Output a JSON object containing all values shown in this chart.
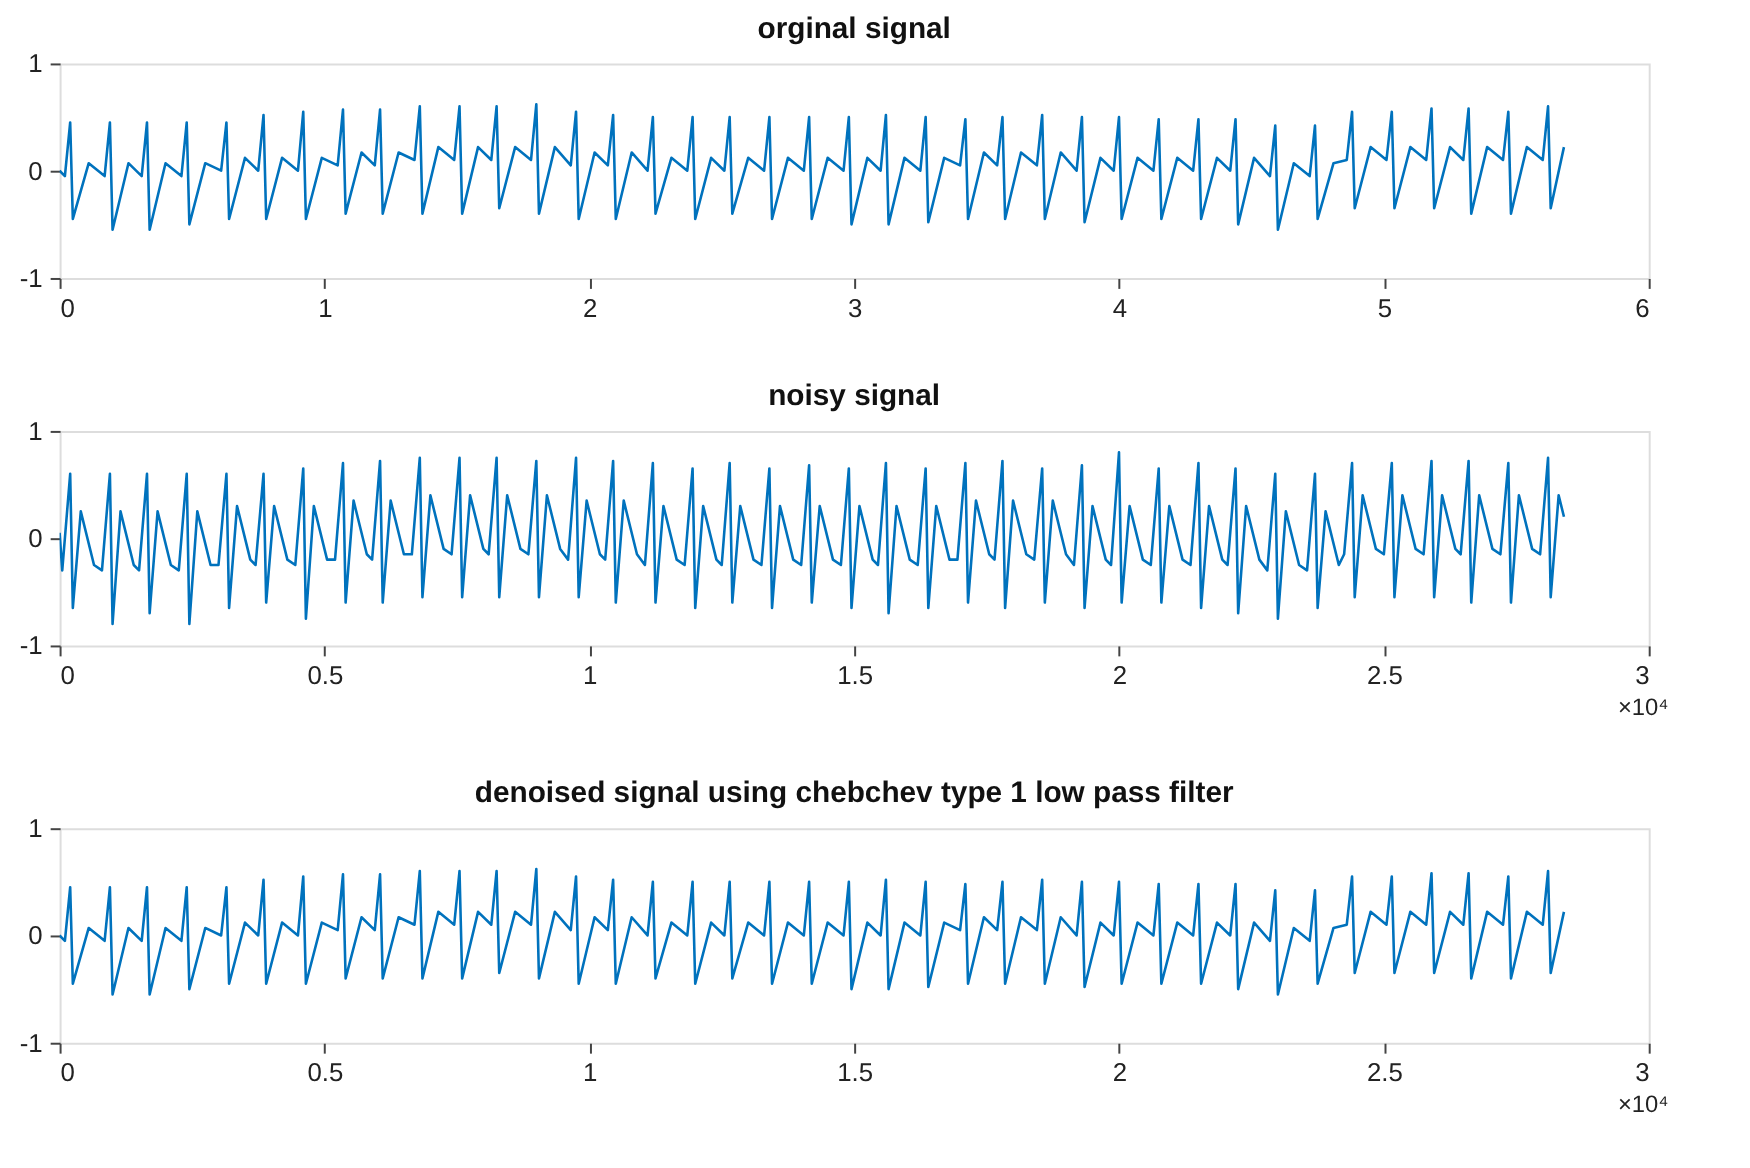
{
  "chart_data": [
    {
      "type": "line",
      "title": "orginal signal",
      "xlim": [
        0,
        6
      ],
      "xticks": [
        0,
        1,
        2,
        3,
        4,
        5,
        6
      ],
      "ylim": [
        -1,
        1
      ],
      "yticks": [
        -1,
        0,
        1
      ],
      "marker": "none",
      "line_style": "solid",
      "x": [
        0,
        0.02,
        0.04,
        0.05,
        0.11,
        0.17,
        0.19,
        0.2,
        0.26,
        0.31,
        0.33,
        0.34,
        0.4,
        0.46,
        0.48,
        0.49,
        0.55,
        0.61,
        0.63,
        0.64,
        0.7,
        0.75,
        0.77,
        0.78,
        0.84,
        0.9,
        0.92,
        0.93,
        0.99,
        1.05,
        1.07,
        1.08,
        1.14,
        1.19,
        1.21,
        1.22,
        1.28,
        1.34,
        1.36,
        1.37,
        1.43,
        1.49,
        1.51,
        1.52,
        1.58,
        1.63,
        1.65,
        1.66,
        1.72,
        1.78,
        1.8,
        1.81,
        1.87,
        1.93,
        1.95,
        1.96,
        2.02,
        2.07,
        2.09,
        2.1,
        2.16,
        2.22,
        2.24,
        2.25,
        2.31,
        2.37,
        2.39,
        2.4,
        2.46,
        2.51,
        2.53,
        2.54,
        2.6,
        2.66,
        2.68,
        2.69,
        2.75,
        2.81,
        2.83,
        2.84,
        2.9,
        2.96,
        2.98,
        2.99,
        3.05,
        3.1,
        3.12,
        3.13,
        3.19,
        3.25,
        3.27,
        3.28,
        3.34,
        3.4,
        3.42,
        3.43,
        3.49,
        3.54,
        3.56,
        3.57,
        3.63,
        3.69,
        3.71,
        3.72,
        3.78,
        3.84,
        3.86,
        3.87,
        3.93,
        3.98,
        4.0,
        4.01,
        4.07,
        4.13,
        4.15,
        4.16,
        4.22,
        4.28,
        4.3,
        4.31,
        4.37,
        4.42,
        4.44,
        4.45,
        4.51,
        4.57,
        4.59,
        4.6,
        4.66,
        4.72,
        4.74,
        4.75,
        4.81,
        4.86,
        4.88,
        4.89,
        4.95,
        5.01,
        5.03,
        5.04,
        5.1,
        5.16,
        5.18,
        5.19,
        5.25,
        5.3,
        5.32,
        5.33,
        5.39,
        5.45,
        5.47,
        5.48,
        5.54,
        5.6,
        5.62,
        5.63,
        5.68
      ],
      "series": [
        {
          "color": "#0072bd",
          "values": [
            0,
            -0.05,
            0.45,
            -0.45,
            0.07,
            -0.05,
            0.45,
            -0.55,
            0.07,
            -0.05,
            0.45,
            -0.55,
            0.07,
            -0.05,
            0.45,
            -0.5,
            0.07,
            0,
            0.45,
            -0.45,
            0.12,
            0,
            0.52,
            -0.45,
            0.12,
            0,
            0.55,
            -0.45,
            0.12,
            0.05,
            0.57,
            -0.4,
            0.17,
            0.05,
            0.57,
            -0.4,
            0.17,
            0.1,
            0.6,
            -0.4,
            0.22,
            0.1,
            0.6,
            -0.4,
            0.22,
            0.1,
            0.6,
            -0.35,
            0.22,
            0.1,
            0.62,
            -0.4,
            0.22,
            0.05,
            0.55,
            -0.45,
            0.17,
            0.05,
            0.52,
            -0.45,
            0.17,
            0,
            0.5,
            -0.4,
            0.12,
            0,
            0.5,
            -0.45,
            0.12,
            0,
            0.5,
            -0.4,
            0.12,
            0,
            0.5,
            -0.45,
            0.12,
            0,
            0.5,
            -0.45,
            0.12,
            0,
            0.5,
            -0.5,
            0.12,
            0,
            0.52,
            -0.5,
            0.12,
            0,
            0.5,
            -0.48,
            0.12,
            0.05,
            0.48,
            -0.45,
            0.17,
            0.05,
            0.5,
            -0.45,
            0.17,
            0.05,
            0.52,
            -0.45,
            0.17,
            0,
            0.5,
            -0.48,
            0.12,
            0,
            0.5,
            -0.45,
            0.12,
            0,
            0.48,
            -0.45,
            0.12,
            0,
            0.48,
            -0.45,
            0.12,
            0,
            0.48,
            -0.5,
            0.12,
            -0.05,
            0.42,
            -0.55,
            0.07,
            -0.05,
            0.42,
            -0.45,
            0.07,
            0.1,
            0.55,
            -0.35,
            0.22,
            0.1,
            0.55,
            -0.35,
            0.22,
            0.1,
            0.58,
            -0.35,
            0.22,
            0.1,
            0.58,
            -0.4,
            0.22,
            0.1,
            0.55,
            -0.4,
            0.22,
            0.1,
            0.6,
            -0.35,
            0.22
          ]
        }
      ]
    },
    {
      "type": "line",
      "title": "noisy signal",
      "xlim": [
        0,
        3
      ],
      "xticks": [
        0,
        0.5,
        1,
        1.5,
        2,
        2.5,
        3
      ],
      "ylim": [
        -1,
        1
      ],
      "yticks": [
        -1,
        0,
        1
      ],
      "marker": "none",
      "line_style": "solid",
      "annotations": [
        "×10⁴"
      ],
      "x": [
        0,
        0.005,
        0.02,
        0.025,
        0.04,
        0.065,
        0.08,
        0.095,
        0.1,
        0.115,
        0.14,
        0.15,
        0.165,
        0.17,
        0.185,
        0.21,
        0.225,
        0.24,
        0.245,
        0.26,
        0.285,
        0.3,
        0.315,
        0.32,
        0.335,
        0.36,
        0.37,
        0.385,
        0.39,
        0.405,
        0.43,
        0.445,
        0.46,
        0.465,
        0.48,
        0.505,
        0.52,
        0.535,
        0.54,
        0.555,
        0.58,
        0.59,
        0.605,
        0.61,
        0.625,
        0.65,
        0.665,
        0.68,
        0.685,
        0.7,
        0.725,
        0.74,
        0.755,
        0.76,
        0.775,
        0.8,
        0.81,
        0.825,
        0.83,
        0.845,
        0.87,
        0.885,
        0.9,
        0.905,
        0.92,
        0.945,
        0.96,
        0.975,
        0.98,
        0.995,
        1.02,
        1.03,
        1.045,
        1.05,
        1.065,
        1.09,
        1.105,
        1.12,
        1.125,
        1.14,
        1.165,
        1.18,
        1.195,
        1.2,
        1.215,
        1.24,
        1.25,
        1.265,
        1.27,
        1.285,
        1.31,
        1.325,
        1.34,
        1.345,
        1.36,
        1.385,
        1.4,
        1.415,
        1.42,
        1.435,
        1.46,
        1.475,
        1.49,
        1.495,
        1.51,
        1.535,
        1.545,
        1.56,
        1.565,
        1.58,
        1.605,
        1.62,
        1.635,
        1.64,
        1.655,
        1.68,
        1.695,
        1.71,
        1.715,
        1.73,
        1.755,
        1.765,
        1.78,
        1.785,
        1.8,
        1.825,
        1.84,
        1.855,
        1.86,
        1.875,
        1.9,
        1.915,
        1.93,
        1.935,
        1.95,
        1.975,
        1.985,
        2.0,
        2.005,
        2.02,
        2.045,
        2.06,
        2.075,
        2.08,
        2.095,
        2.12,
        2.135,
        2.15,
        2.155,
        2.17,
        2.195,
        2.205,
        2.22,
        2.225,
        2.24,
        2.265,
        2.28,
        2.295,
        2.3,
        2.315,
        2.34,
        2.355,
        2.37,
        2.375,
        2.39,
        2.415,
        2.425,
        2.44,
        2.445,
        2.46,
        2.485,
        2.5,
        2.515,
        2.52,
        2.535,
        2.56,
        2.575,
        2.59,
        2.595,
        2.61,
        2.635,
        2.645,
        2.66,
        2.665,
        2.68,
        2.705,
        2.72,
        2.735,
        2.74,
        2.755,
        2.78,
        2.795,
        2.81,
        2.815,
        2.83,
        2.84
      ],
      "series": [
        {
          "color": "#0072bd",
          "values": [
            0.05,
            -0.3,
            0.6,
            -0.65,
            0.25,
            -0.25,
            -0.3,
            0.6,
            -0.8,
            0.25,
            -0.25,
            -0.3,
            0.6,
            -0.7,
            0.25,
            -0.25,
            -0.3,
            0.6,
            -0.8,
            0.25,
            -0.25,
            -0.25,
            0.6,
            -0.65,
            0.3,
            -0.2,
            -0.25,
            0.6,
            -0.6,
            0.3,
            -0.2,
            -0.25,
            0.65,
            -0.75,
            0.3,
            -0.2,
            -0.2,
            0.7,
            -0.6,
            0.35,
            -0.15,
            -0.2,
            0.72,
            -0.6,
            0.35,
            -0.15,
            -0.15,
            0.75,
            -0.55,
            0.4,
            -0.1,
            -0.15,
            0.75,
            -0.55,
            0.4,
            -0.1,
            -0.15,
            0.75,
            -0.55,
            0.4,
            -0.1,
            -0.15,
            0.72,
            -0.55,
            0.4,
            -0.1,
            -0.2,
            0.75,
            -0.55,
            0.35,
            -0.15,
            -0.2,
            0.72,
            -0.6,
            0.35,
            -0.15,
            -0.25,
            0.7,
            -0.6,
            0.3,
            -0.2,
            -0.25,
            0.65,
            -0.65,
            0.3,
            -0.2,
            -0.25,
            0.7,
            -0.6,
            0.3,
            -0.2,
            -0.25,
            0.65,
            -0.65,
            0.3,
            -0.2,
            -0.25,
            0.68,
            -0.6,
            0.3,
            -0.2,
            -0.25,
            0.65,
            -0.65,
            0.3,
            -0.2,
            -0.25,
            0.7,
            -0.7,
            0.3,
            -0.2,
            -0.25,
            0.65,
            -0.65,
            0.3,
            -0.2,
            -0.2,
            0.7,
            -0.6,
            0.35,
            -0.15,
            -0.2,
            0.72,
            -0.65,
            0.35,
            -0.15,
            -0.2,
            0.65,
            -0.6,
            0.35,
            -0.15,
            -0.25,
            0.68,
            -0.65,
            0.3,
            -0.2,
            -0.25,
            0.8,
            -0.6,
            0.3,
            -0.2,
            -0.25,
            0.65,
            -0.6,
            0.3,
            -0.2,
            -0.25,
            0.7,
            -0.65,
            0.3,
            -0.2,
            -0.25,
            0.65,
            -0.7,
            0.3,
            -0.2,
            -0.3,
            0.6,
            -0.75,
            0.25,
            -0.25,
            -0.3,
            0.6,
            -0.65,
            0.25,
            -0.25,
            -0.15,
            0.7,
            -0.55,
            0.4,
            -0.1,
            -0.15,
            0.7,
            -0.55,
            0.4,
            -0.1,
            -0.15,
            0.72,
            -0.55,
            0.4,
            -0.1,
            -0.15,
            0.72,
            -0.6,
            0.4,
            -0.1,
            -0.15,
            0.7,
            -0.6,
            0.4,
            -0.1,
            -0.15,
            0.75,
            -0.55,
            0.4,
            0.2
          ]
        }
      ]
    },
    {
      "type": "line",
      "title": "denoised signal using chebchev type 1 low pass filter",
      "xlim": [
        0,
        3
      ],
      "xticks": [
        0,
        0.5,
        1,
        1.5,
        2,
        2.5,
        3
      ],
      "ylim": [
        -1,
        1
      ],
      "yticks": [
        -1,
        0,
        1
      ],
      "marker": "none",
      "line_style": "solid",
      "annotations": [
        "×10⁴"
      ],
      "x": [
        0,
        0.01,
        0.02,
        0.025,
        0.055,
        0.085,
        0.095,
        0.1,
        0.13,
        0.155,
        0.165,
        0.17,
        0.2,
        0.23,
        0.24,
        0.245,
        0.275,
        0.305,
        0.315,
        0.32,
        0.35,
        0.375,
        0.385,
        0.39,
        0.42,
        0.45,
        0.46,
        0.465,
        0.495,
        0.525,
        0.535,
        0.54,
        0.57,
        0.595,
        0.605,
        0.61,
        0.64,
        0.67,
        0.68,
        0.685,
        0.715,
        0.745,
        0.755,
        0.76,
        0.79,
        0.815,
        0.825,
        0.83,
        0.86,
        0.89,
        0.9,
        0.905,
        0.935,
        0.965,
        0.975,
        0.98,
        1.01,
        1.035,
        1.045,
        1.05,
        1.08,
        1.11,
        1.12,
        1.125,
        1.155,
        1.185,
        1.195,
        1.2,
        1.23,
        1.255,
        1.265,
        1.27,
        1.3,
        1.33,
        1.34,
        1.345,
        1.375,
        1.405,
        1.415,
        1.42,
        1.45,
        1.48,
        1.49,
        1.495,
        1.525,
        1.55,
        1.56,
        1.565,
        1.595,
        1.625,
        1.635,
        1.64,
        1.67,
        1.7,
        1.71,
        1.715,
        1.745,
        1.77,
        1.78,
        1.785,
        1.815,
        1.845,
        1.855,
        1.86,
        1.89,
        1.92,
        1.93,
        1.935,
        1.965,
        1.99,
        2.0,
        2.005,
        2.035,
        2.065,
        2.075,
        2.08,
        2.11,
        2.14,
        2.15,
        2.155,
        2.185,
        2.21,
        2.22,
        2.225,
        2.255,
        2.285,
        2.295,
        2.3,
        2.33,
        2.36,
        2.37,
        2.375,
        2.405,
        2.43,
        2.44,
        2.445,
        2.475,
        2.505,
        2.515,
        2.52,
        2.55,
        2.58,
        2.59,
        2.595,
        2.625,
        2.65,
        2.66,
        2.665,
        2.695,
        2.725,
        2.735,
        2.74,
        2.77,
        2.8,
        2.81,
        2.815,
        2.84
      ],
      "series": [
        {
          "color": "#0072bd",
          "values": [
            0,
            -0.05,
            0.45,
            -0.45,
            0.07,
            -0.05,
            0.45,
            -0.55,
            0.07,
            -0.05,
            0.45,
            -0.55,
            0.07,
            -0.05,
            0.45,
            -0.5,
            0.07,
            0,
            0.45,
            -0.45,
            0.12,
            0,
            0.52,
            -0.45,
            0.12,
            0,
            0.55,
            -0.45,
            0.12,
            0.05,
            0.57,
            -0.4,
            0.17,
            0.05,
            0.57,
            -0.4,
            0.17,
            0.1,
            0.6,
            -0.4,
            0.22,
            0.1,
            0.6,
            -0.4,
            0.22,
            0.1,
            0.6,
            -0.35,
            0.22,
            0.1,
            0.62,
            -0.4,
            0.22,
            0.05,
            0.55,
            -0.45,
            0.17,
            0.05,
            0.52,
            -0.45,
            0.17,
            0,
            0.5,
            -0.4,
            0.12,
            0,
            0.5,
            -0.45,
            0.12,
            0,
            0.5,
            -0.4,
            0.12,
            0,
            0.5,
            -0.45,
            0.12,
            0,
            0.5,
            -0.45,
            0.12,
            0,
            0.5,
            -0.5,
            0.12,
            0,
            0.52,
            -0.5,
            0.12,
            0,
            0.5,
            -0.48,
            0.12,
            0.05,
            0.48,
            -0.45,
            0.17,
            0.05,
            0.5,
            -0.45,
            0.17,
            0.05,
            0.52,
            -0.45,
            0.17,
            0,
            0.5,
            -0.48,
            0.12,
            0,
            0.5,
            -0.45,
            0.12,
            0,
            0.48,
            -0.45,
            0.12,
            0,
            0.48,
            -0.45,
            0.12,
            0,
            0.48,
            -0.5,
            0.12,
            -0.05,
            0.42,
            -0.55,
            0.07,
            -0.05,
            0.42,
            -0.45,
            0.07,
            0.1,
            0.55,
            -0.35,
            0.22,
            0.1,
            0.55,
            -0.35,
            0.22,
            0.1,
            0.58,
            -0.35,
            0.22,
            0.1,
            0.58,
            -0.4,
            0.22,
            0.1,
            0.55,
            -0.4,
            0.22,
            0.1,
            0.6,
            -0.35,
            0.22
          ]
        }
      ]
    }
  ]
}
